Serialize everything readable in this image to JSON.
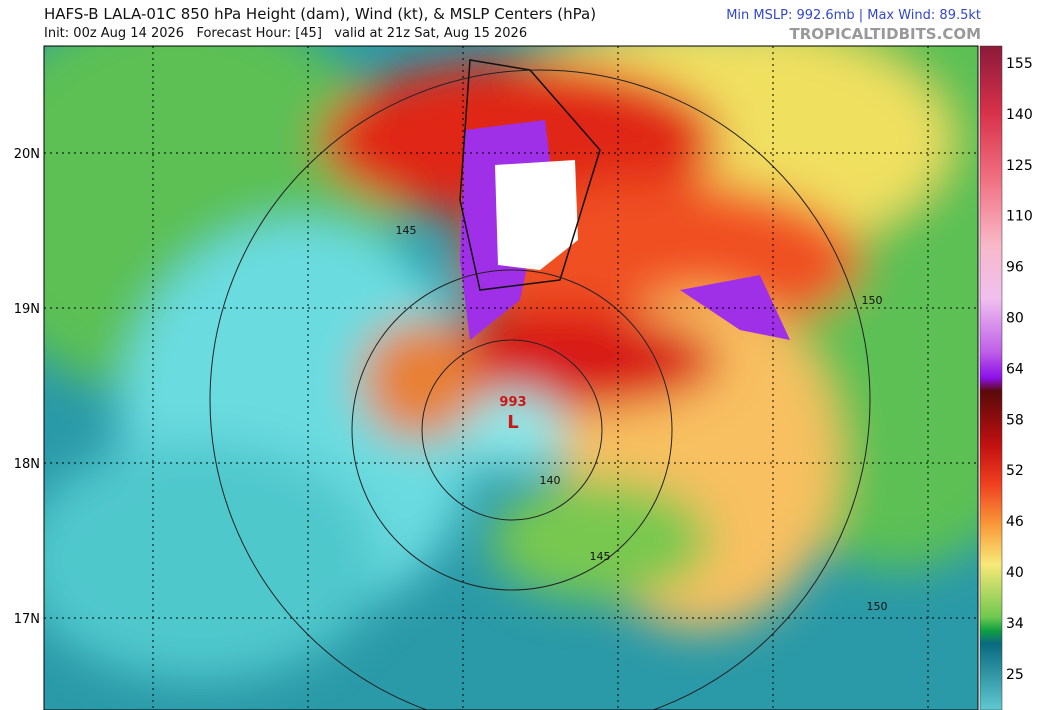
{
  "header": {
    "title": "HAFS-B LALA-01C 850 hPa Height (dam), Wind (kt), & MSLP Centers (hPa)",
    "init": "Init: 00z Aug 14 2026   Forecast Hour: [45]   valid at 21z Sat, Aug 15 2026",
    "stats": "Min MSLP: 992.6mb | Max Wind: 89.5kt",
    "source": "TROPICALTIDBITS.COM"
  },
  "map": {
    "lat_labels": [
      "20N",
      "19N",
      "18N",
      "17N"
    ],
    "contour_labels": [
      "145",
      "140",
      "145",
      "150",
      "150"
    ],
    "low": {
      "pressure": "993",
      "symbol": "L"
    }
  },
  "colorbar": {
    "labels": [
      "155",
      "140",
      "125",
      "110",
      "96",
      "80",
      "64",
      "58",
      "52",
      "46",
      "40",
      "34",
      "25"
    ]
  }
}
